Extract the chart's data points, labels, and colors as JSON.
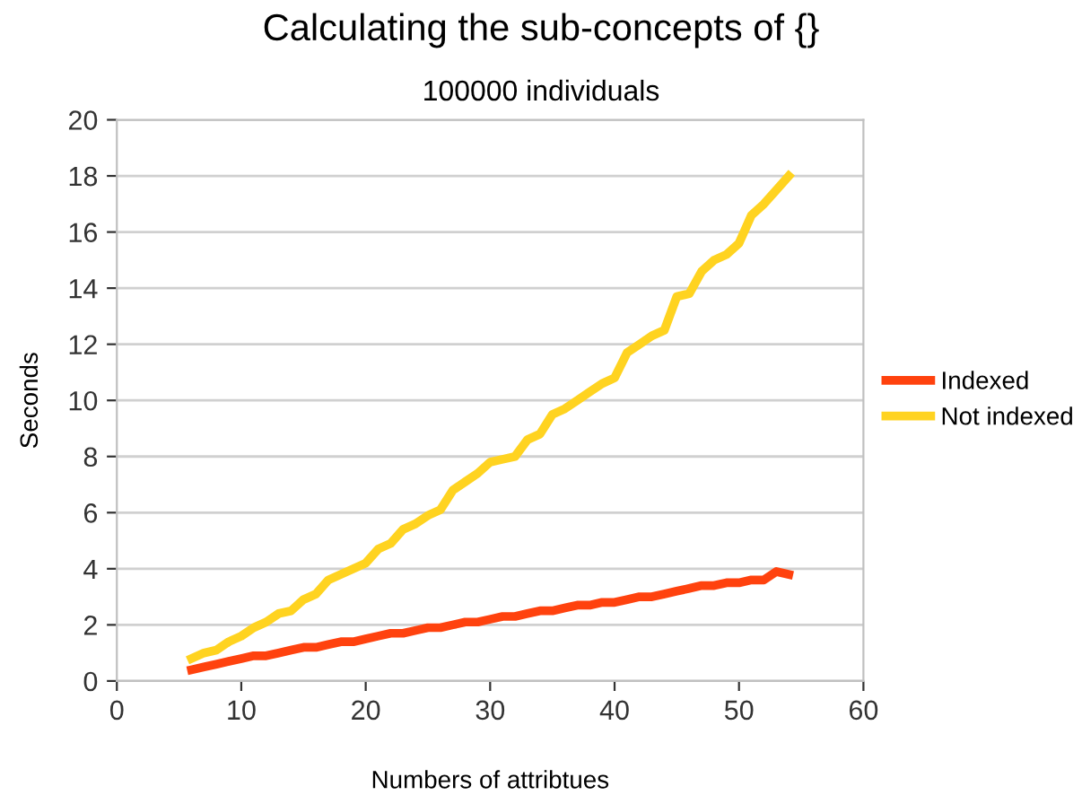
{
  "chart_data": {
    "type": "line",
    "title": "Calculating the sub-concepts of {}",
    "subtitle": "100000 individuals",
    "xlabel": "Numbers of attribtues",
    "ylabel": "Seconds",
    "x": [
      6,
      7,
      8,
      9,
      10,
      11,
      12,
      13,
      14,
      15,
      16,
      17,
      18,
      19,
      20,
      21,
      22,
      23,
      24,
      25,
      26,
      27,
      28,
      29,
      30,
      31,
      32,
      33,
      34,
      35,
      36,
      37,
      38,
      39,
      40,
      41,
      42,
      43,
      44,
      45,
      46,
      47,
      48,
      49,
      50,
      51,
      52,
      53,
      54
    ],
    "series": [
      {
        "name": "Indexed",
        "color": "#ff420e",
        "values": [
          0.4,
          0.5,
          0.6,
          0.7,
          0.8,
          0.9,
          0.9,
          1.0,
          1.1,
          1.2,
          1.2,
          1.3,
          1.4,
          1.4,
          1.5,
          1.6,
          1.7,
          1.7,
          1.8,
          1.9,
          1.9,
          2.0,
          2.1,
          2.1,
          2.2,
          2.3,
          2.3,
          2.4,
          2.5,
          2.5,
          2.6,
          2.7,
          2.7,
          2.8,
          2.8,
          2.9,
          3.0,
          3.0,
          3.1,
          3.2,
          3.3,
          3.4,
          3.4,
          3.5,
          3.5,
          3.6,
          3.6,
          3.9,
          3.8
        ]
      },
      {
        "name": "Not indexed",
        "color": "#ffd320",
        "values": [
          0.8,
          1.0,
          1.1,
          1.4,
          1.6,
          1.9,
          2.1,
          2.4,
          2.5,
          2.9,
          3.1,
          3.6,
          3.8,
          4.0,
          4.2,
          4.7,
          4.9,
          5.4,
          5.6,
          5.9,
          6.1,
          6.8,
          7.1,
          7.4,
          7.8,
          7.9,
          8.0,
          8.6,
          8.8,
          9.5,
          9.7,
          10.0,
          10.3,
          10.6,
          10.8,
          11.7,
          12.0,
          12.3,
          12.5,
          13.7,
          13.8,
          14.6,
          15.0,
          15.2,
          15.6,
          16.6,
          17.0,
          17.5,
          18.0
        ]
      }
    ],
    "xlim": [
      0,
      60
    ],
    "xticks": [
      0,
      10,
      20,
      30,
      40,
      50,
      60
    ],
    "ylim": [
      0,
      20
    ],
    "yticks": [
      0,
      2,
      4,
      6,
      8,
      10,
      12,
      14,
      16,
      18,
      20
    ],
    "grid": "y",
    "legend": "right",
    "marker": "none",
    "line_style": "solid"
  }
}
